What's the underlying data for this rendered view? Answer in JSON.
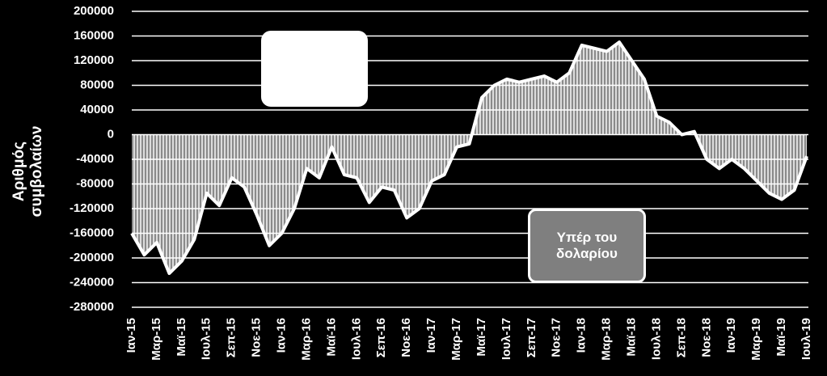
{
  "chart_data": {
    "type": "area",
    "y_label": "Αριθμός συμβολαίων",
    "annotations": [
      "Υπέρ του δολαρίου"
    ],
    "categories": [
      "Ιαν-15",
      null,
      "Μαρ-15",
      null,
      "Μαϊ-15",
      null,
      "Ιουλ-15",
      null,
      "Σεπ-15",
      null,
      "Νοε-15",
      null,
      "Ιαν-16",
      null,
      "Μαρ-16",
      null,
      "Μαϊ-16",
      null,
      "Ιουλ-16",
      null,
      "Σεπ-16",
      null,
      "Νοε-16",
      null,
      "Ιαν-17",
      null,
      "Μαρ-17",
      null,
      "Μαϊ-17",
      null,
      "Ιουλ-17",
      null,
      "Σεπ-17",
      null,
      "Νοε-17",
      null,
      "Ιαν-18",
      null,
      "Μαρ-18",
      null,
      "Μαϊ-18",
      null,
      "Ιουλ-18",
      null,
      "Σεπ-18",
      null,
      "Νοε-18",
      null,
      "Ιαν-19",
      null,
      "Μαρ-19",
      null,
      "Μαϊ-19",
      null,
      "Ιουλ-19"
    ],
    "values": [
      -160000,
      -195000,
      -175000,
      -225000,
      -205000,
      -170000,
      -95000,
      -115000,
      -70000,
      -85000,
      -130000,
      -180000,
      -160000,
      -120000,
      -55000,
      -70000,
      -20000,
      -65000,
      -70000,
      -110000,
      -85000,
      -90000,
      -135000,
      -120000,
      -75000,
      -65000,
      -20000,
      -15000,
      60000,
      80000,
      90000,
      85000,
      90000,
      95000,
      85000,
      100000,
      145000,
      140000,
      135000,
      150000,
      120000,
      90000,
      30000,
      20000,
      0,
      5000,
      -40000,
      -55000,
      -40000,
      -55000,
      -75000,
      -95000,
      -105000,
      -90000,
      -35000
    ],
    "color": "#ffffff",
    "ylim": [
      -280000,
      200000
    ],
    "yticks": [
      -280000,
      -240000,
      -200000,
      -160000,
      -120000,
      -80000,
      -40000,
      0,
      40000,
      80000,
      120000,
      160000,
      200000
    ],
    "grid": true
  }
}
